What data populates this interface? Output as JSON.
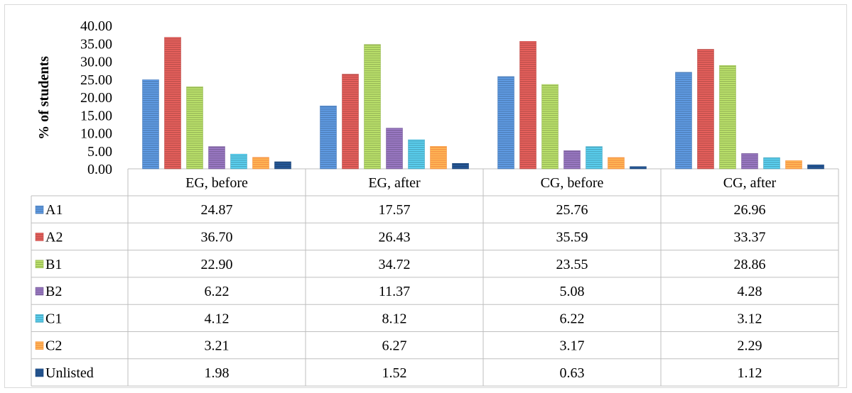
{
  "chart_data": {
    "type": "bar",
    "ylabel": "% of students",
    "ylim": [
      0,
      40
    ],
    "yticks": [
      "0.00",
      "5.00",
      "10.00",
      "15.00",
      "20.00",
      "25.00",
      "30.00",
      "35.00",
      "40.00"
    ],
    "categories": [
      "EG, before",
      "EG, after",
      "CG, before",
      "CG, after"
    ],
    "series": [
      {
        "name": "A1",
        "color": "#4f81bd",
        "values": [
          24.87,
          17.57,
          25.76,
          26.96
        ],
        "labels": [
          "24.87",
          "17.57",
          "25.76",
          "26.96"
        ]
      },
      {
        "name": "A2",
        "color": "#c0504d",
        "values": [
          36.7,
          26.43,
          35.59,
          33.37
        ],
        "labels": [
          "36.70",
          "26.43",
          "35.59",
          "33.37"
        ]
      },
      {
        "name": "B1",
        "color": "#9bbb59",
        "values": [
          22.9,
          34.72,
          23.55,
          28.86
        ],
        "labels": [
          "22.90",
          "34.72",
          "23.55",
          "28.86"
        ]
      },
      {
        "name": "B2",
        "color": "#8064a2",
        "values": [
          6.22,
          11.37,
          5.08,
          4.28
        ],
        "labels": [
          "6.22",
          "11.37",
          "5.08",
          "4.28"
        ]
      },
      {
        "name": "C1",
        "color": "#4bacc6",
        "values": [
          4.12,
          8.12,
          6.22,
          3.12
        ],
        "labels": [
          "4.12",
          "8.12",
          "6.22",
          "3.12"
        ]
      },
      {
        "name": "C2",
        "color": "#f79646",
        "values": [
          3.21,
          6.27,
          3.17,
          2.29
        ],
        "labels": [
          "3.21",
          "6.27",
          "3.17",
          "2.29"
        ]
      },
      {
        "name": "Unlisted",
        "color": "#1f497d",
        "values": [
          1.98,
          1.52,
          0.63,
          1.12
        ],
        "labels": [
          "1.98",
          "1.52",
          "0.63",
          "1.12"
        ]
      }
    ],
    "grid": false,
    "legend": "data-table"
  }
}
